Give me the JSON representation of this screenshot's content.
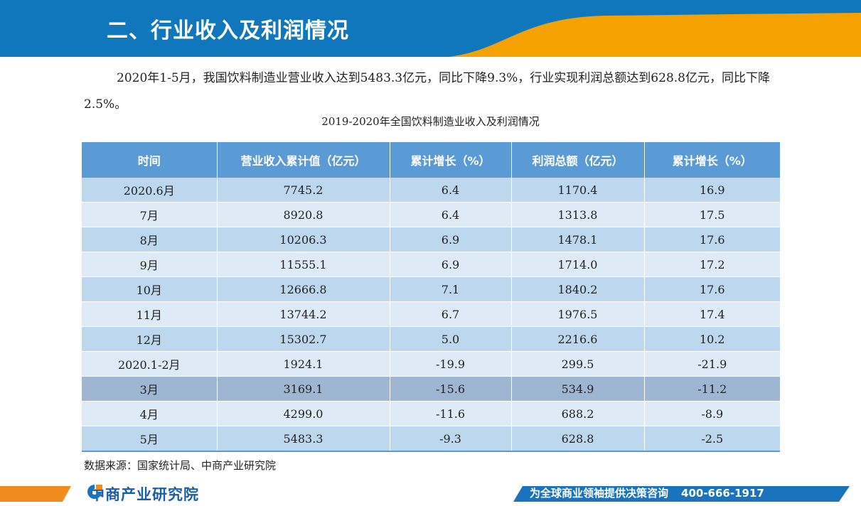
{
  "header": {
    "title": "二、行业收入及利润情况"
  },
  "intro": {
    "text": "2020年1-5月，我国饮料制造业营业收入达到5483.3亿元，同比下降9.3%，行业实现利润总额达到628.8亿元，同比下降2.5%。"
  },
  "table": {
    "caption": "2019-2020年全国饮料制造业收入及利润情况",
    "headers": [
      "时间",
      "营业收入累计值（亿元）",
      "累计增长（%）",
      "利润总额（亿元）",
      "累计增长（%）"
    ],
    "rows": [
      [
        "2020.6月",
        "7745.2",
        "6.4",
        "1170.4",
        "16.9"
      ],
      [
        "7月",
        "8920.8",
        "6.4",
        "1313.8",
        "17.5"
      ],
      [
        "8月",
        "10206.3",
        "6.9",
        "1478.1",
        "17.6"
      ],
      [
        "9月",
        "11555.1",
        "6.9",
        "1714.0",
        "17.2"
      ],
      [
        "10月",
        "12666.8",
        "7.1",
        "1840.2",
        "17.6"
      ],
      [
        "11月",
        "13744.2",
        "6.7",
        "1976.5",
        "17.4"
      ],
      [
        "12月",
        "15302.7",
        "5.0",
        "2216.6",
        "10.2"
      ],
      [
        "2020.1-2月",
        "1924.1",
        "-19.9",
        "299.5",
        "-21.9"
      ],
      [
        "3月",
        "3169.1",
        "-15.6",
        "534.9",
        "-11.2"
      ],
      [
        "4月",
        "4299.0",
        "-11.6",
        "688.2",
        "-8.9"
      ],
      [
        "5月",
        "5483.3",
        "-9.3",
        "628.8",
        "-2.5"
      ]
    ]
  },
  "source": "数据来源：国家统计局、中商产业研究院",
  "footer": {
    "logo_text": "中商产业研究院",
    "slogan": "为全球商业领袖提供决策咨询",
    "phone": "400-666-1917"
  },
  "colors": {
    "header_blue": "#1177bd",
    "accent_orange": "#f5a100",
    "table_header": "#5b9bd5",
    "row_light": "#deebf7",
    "row_mid": "#bdd7ee"
  }
}
